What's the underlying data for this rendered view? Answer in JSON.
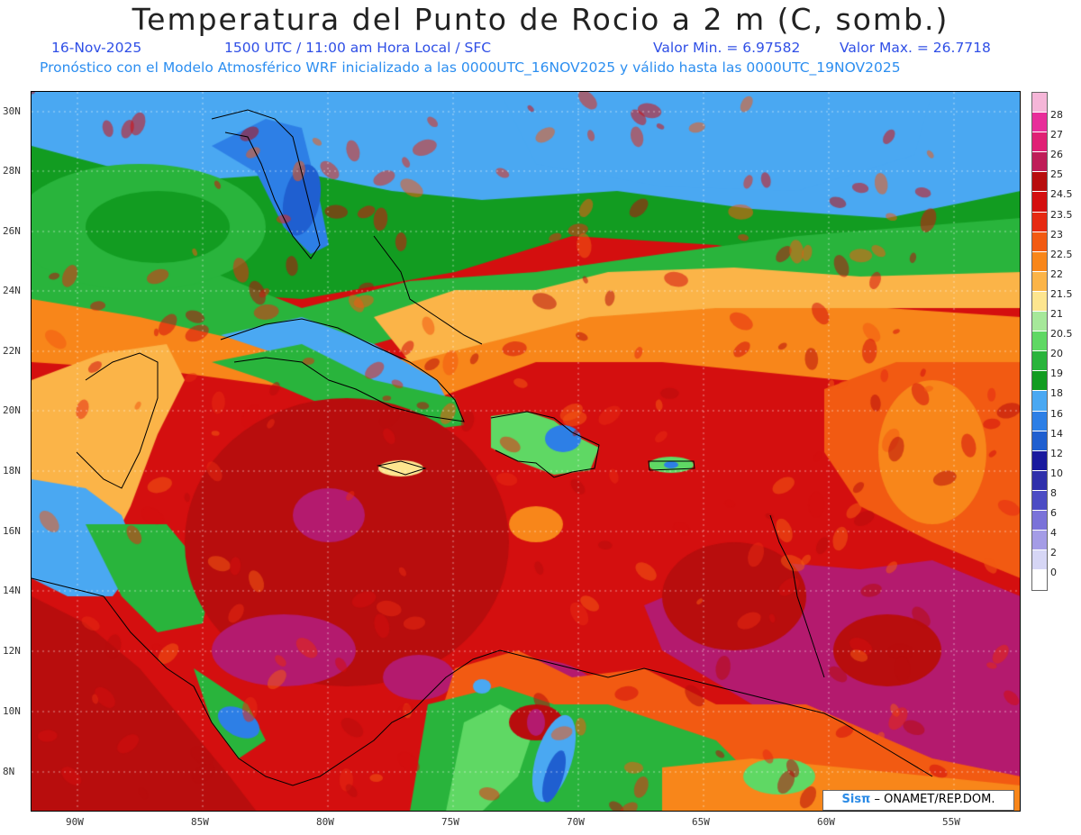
{
  "header": {
    "title": "Temperatura del Punto de Rocio a 2 m (C, somb.)",
    "date": "16-Nov-2025",
    "time": "1500 UTC / 11:00 am Hora Local / SFC",
    "min": "Valor Min. = 6.97582",
    "max": "Valor Max. = 26.7718",
    "model": "Pronóstico con el Modelo Atmosférico WRF inicializado a las 0000UTC_16NOV2025 y válido hasta las  0000UTC_19NOV2025"
  },
  "axes": {
    "lat_ticks": [
      "30N",
      "28N",
      "26N",
      "24N",
      "22N",
      "20N",
      "18N",
      "16N",
      "14N",
      "12N",
      "10N",
      "8N"
    ],
    "lon_ticks": [
      "90W",
      "85W",
      "80W",
      "75W",
      "70W",
      "65W",
      "60W",
      "55W"
    ]
  },
  "legend": {
    "labels": [
      "28",
      "27",
      "26",
      "25",
      "24.5",
      "23.5",
      "23",
      "22.5",
      "22",
      "21.5",
      "21",
      "20.5",
      "20",
      "19",
      "18",
      "16",
      "14",
      "12",
      "10",
      "8",
      "6",
      "4",
      "2",
      "0"
    ],
    "colors": [
      "#f5b6d8",
      "#e82e9a",
      "#e02075",
      "#bf1d58",
      "#b80d0d",
      "#d40f0f",
      "#e62a12",
      "#f25a12",
      "#f8861a",
      "#fbb448",
      "#fde58f",
      "#a6e89a",
      "#5fd864",
      "#29b43c",
      "#129c21",
      "#4aa8f2",
      "#2d7fe6",
      "#1f5fd0",
      "#1a1a9e",
      "#2f2fab",
      "#4c4cc4",
      "#7a72d9",
      "#a49ce6",
      "#d6d6f5"
    ]
  },
  "credit": {
    "logo": "Sisπ",
    "text": " – ONAMET/REP.DOM."
  }
}
